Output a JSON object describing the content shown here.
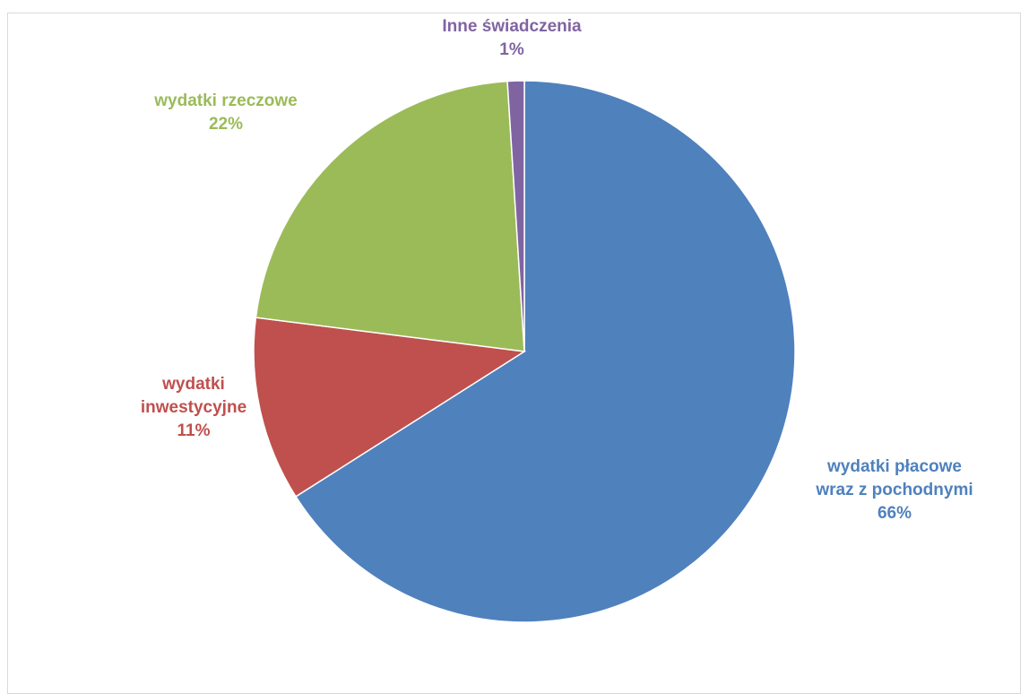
{
  "chart_data": {
    "type": "pie",
    "title": "",
    "start_angle_deg": 0,
    "direction": "clockwise",
    "slices": [
      {
        "label_lines": [
          "wydatki płacowe",
          "wraz z pochodnymi"
        ],
        "percent_label": "66%",
        "value": 66,
        "color": "#4f81bd"
      },
      {
        "label_lines": [
          "wydatki",
          "inwestycyjne"
        ],
        "percent_label": "11%",
        "value": 11,
        "color": "#c0504d"
      },
      {
        "label_lines": [
          "wydatki rzeczowe"
        ],
        "percent_label": "22%",
        "value": 22,
        "color": "#9bbb59"
      },
      {
        "label_lines": [
          "Inne świadczenia"
        ],
        "percent_label": "1%",
        "value": 1,
        "color": "#8064a2"
      }
    ]
  }
}
